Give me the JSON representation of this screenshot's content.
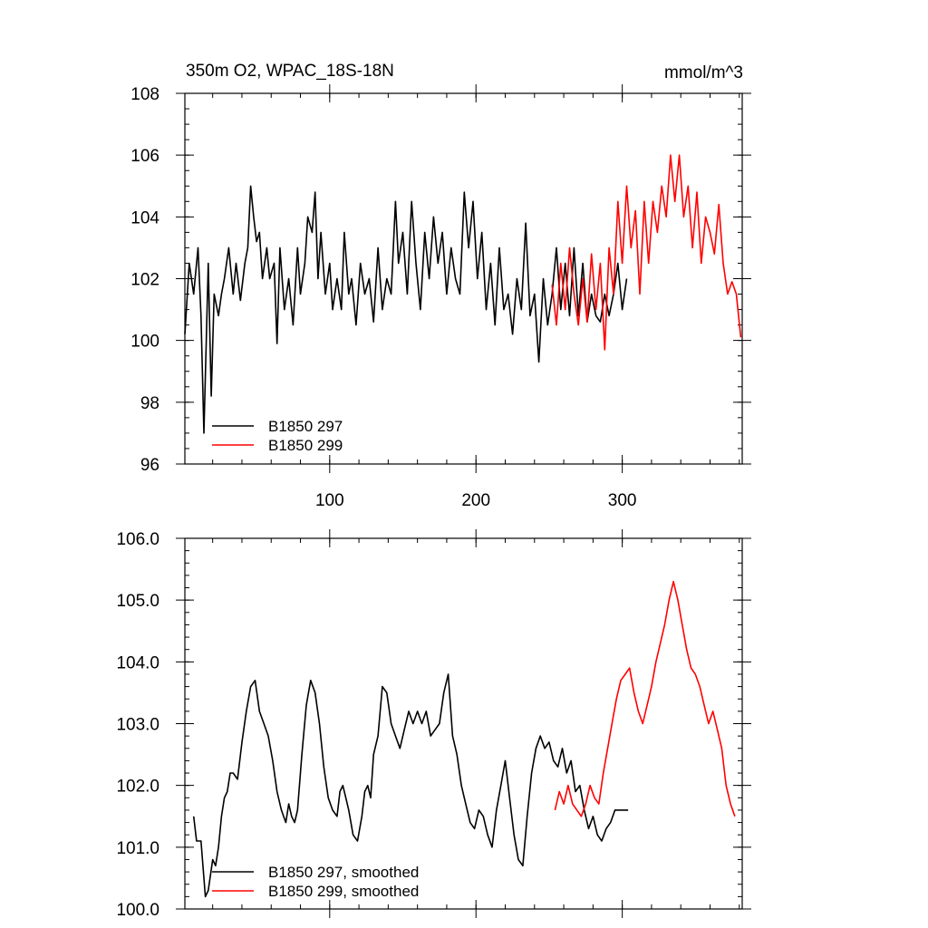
{
  "colors": {
    "series_297": "#000000",
    "series_299": "#ff0000"
  },
  "chart_data": [
    {
      "type": "line",
      "title": "350m O2, WPAC_18S-18N",
      "units": "mmol/m^3",
      "xlim": [
        1,
        382
      ],
      "ylim": [
        96,
        108
      ],
      "x_ticks": [
        100,
        200,
        300
      ],
      "y_ticks": [
        96,
        98,
        100,
        102,
        104,
        106,
        108
      ],
      "y_tick_labels": [
        "96",
        "98",
        "100",
        "102",
        "104",
        "106",
        "108"
      ],
      "x_tick_labels": [
        "100",
        "200",
        "300"
      ],
      "grid": false,
      "legend_position": "bottom-left",
      "series": [
        {
          "name": "B1850 297",
          "color": "#000000",
          "x": [
            1,
            4,
            7,
            10,
            12,
            14,
            17,
            19,
            21,
            24,
            26,
            28,
            31,
            34,
            36,
            39,
            42,
            44,
            46,
            48,
            50,
            52,
            54,
            57,
            59,
            62,
            64,
            66,
            69,
            72,
            75,
            78,
            80,
            83,
            85,
            88,
            90,
            92,
            94,
            97,
            100,
            102,
            105,
            108,
            110,
            113,
            115,
            118,
            121,
            124,
            127,
            130,
            133,
            136,
            139,
            142,
            145,
            147,
            150,
            153,
            156,
            159,
            162,
            165,
            168,
            171,
            174,
            177,
            180,
            183,
            186,
            189,
            192,
            195,
            198,
            201,
            204,
            207,
            210,
            213,
            216,
            219,
            222,
            225,
            228,
            231,
            234,
            237,
            240,
            243,
            246,
            249,
            252,
            255,
            258,
            261,
            264,
            267,
            270,
            273,
            276,
            279,
            282,
            285,
            288,
            291,
            294,
            297,
            300,
            303
          ],
          "values": [
            100.2,
            102.5,
            101.5,
            103.0,
            100.8,
            97.0,
            102.5,
            98.2,
            101.5,
            100.8,
            101.5,
            102.0,
            103.0,
            101.5,
            102.5,
            101.3,
            102.5,
            103.0,
            105.0,
            104.0,
            103.2,
            103.5,
            102.0,
            103.0,
            102.0,
            102.5,
            99.9,
            103.0,
            101.0,
            102.0,
            100.5,
            103.0,
            101.5,
            102.5,
            104.0,
            103.5,
            104.8,
            102.0,
            103.5,
            101.5,
            102.5,
            101.0,
            102.0,
            101.0,
            103.5,
            101.5,
            102.0,
            100.5,
            102.5,
            101.5,
            102.0,
            100.6,
            103.0,
            101.0,
            102.0,
            101.5,
            104.5,
            102.5,
            103.5,
            101.5,
            104.5,
            102.5,
            101.0,
            103.5,
            102.0,
            104.0,
            102.5,
            103.5,
            101.5,
            103.0,
            102.0,
            101.5,
            104.8,
            103.0,
            104.5,
            102.0,
            103.5,
            101.0,
            102.5,
            100.5,
            103.0,
            101.0,
            101.5,
            100.2,
            102.0,
            101.0,
            103.8,
            100.8,
            101.5,
            99.3,
            102.0,
            100.5,
            101.5,
            103.0,
            101.0,
            102.5,
            100.8,
            103.0,
            100.8,
            102.5,
            100.6,
            101.5,
            100.8,
            100.6,
            101.5,
            100.8,
            101.5,
            102.5,
            101.0,
            102.0
          ],
          "note_x_range": "approx 1-303"
        },
        {
          "name": "B1850 299",
          "color": "#ff0000",
          "x": [
            252,
            255,
            258,
            261,
            264,
            267,
            270,
            273,
            276,
            279,
            282,
            285,
            288,
            291,
            294,
            297,
            300,
            303,
            306,
            309,
            312,
            315,
            318,
            321,
            324,
            327,
            330,
            333,
            336,
            339,
            342,
            345,
            348,
            351,
            354,
            357,
            360,
            363,
            366,
            369,
            372,
            375,
            378,
            381
          ],
          "values": [
            101.8,
            100.5,
            102.5,
            101.0,
            103.0,
            101.5,
            100.5,
            102.0,
            100.6,
            102.8,
            101.0,
            102.5,
            99.7,
            103.0,
            101.5,
            104.5,
            102.5,
            105.0,
            103.0,
            104.2,
            101.5,
            104.5,
            102.5,
            104.5,
            103.5,
            105.0,
            104.0,
            106.0,
            104.5,
            106.0,
            104.0,
            105.0,
            103.0,
            104.8,
            102.5,
            104.0,
            103.5,
            102.8,
            104.4,
            102.5,
            101.5,
            101.9,
            101.5,
            100.1
          ],
          "note_x_range": "approx 251-382"
        }
      ]
    },
    {
      "type": "line",
      "title": "",
      "xlim": [
        1,
        382
      ],
      "ylim": [
        100,
        106
      ],
      "x_ticks": [
        100,
        200,
        300
      ],
      "y_ticks": [
        100,
        101,
        102,
        103,
        104,
        105,
        106
      ],
      "y_tick_labels": [
        "100.0",
        "101.0",
        "102.0",
        "103.0",
        "104.0",
        "105.0",
        "106.0"
      ],
      "grid": false,
      "legend_position": "bottom-left",
      "series": [
        {
          "name": "B1850 297, smoothed",
          "color": "#000000",
          "x": [
            7,
            9,
            12,
            15,
            17,
            20,
            22,
            24,
            26,
            28,
            30,
            32,
            34,
            37,
            40,
            43,
            46,
            49,
            52,
            55,
            58,
            61,
            64,
            67,
            70,
            72,
            74,
            76,
            78,
            81,
            84,
            87,
            90,
            93,
            96,
            99,
            102,
            105,
            107,
            109,
            111,
            113,
            116,
            119,
            122,
            124,
            126,
            128,
            130,
            133,
            136,
            139,
            142,
            145,
            148,
            151,
            154,
            157,
            160,
            163,
            166,
            169,
            172,
            175,
            178,
            181,
            184,
            187,
            190,
            193,
            196,
            199,
            202,
            205,
            208,
            211,
            214,
            217,
            220,
            223,
            226,
            229,
            232,
            235,
            238,
            241,
            244,
            247,
            250,
            253,
            256,
            259,
            262,
            265,
            268,
            271,
            274,
            277,
            280,
            283,
            286,
            289,
            292,
            295,
            298,
            301,
            304
          ],
          "values": [
            101.5,
            101.1,
            101.1,
            100.2,
            100.3,
            100.8,
            100.7,
            101.0,
            101.5,
            101.8,
            101.9,
            102.2,
            102.2,
            102.1,
            102.7,
            103.2,
            103.6,
            103.7,
            103.2,
            103.0,
            102.8,
            102.4,
            101.9,
            101.6,
            101.4,
            101.7,
            101.5,
            101.4,
            101.6,
            102.5,
            103.3,
            103.7,
            103.5,
            103.0,
            102.3,
            101.8,
            101.6,
            101.5,
            101.9,
            102.0,
            101.8,
            101.6,
            101.2,
            101.1,
            101.5,
            101.9,
            102.0,
            101.8,
            102.5,
            102.8,
            103.6,
            103.5,
            103.0,
            102.8,
            102.6,
            102.9,
            103.2,
            103.0,
            103.2,
            103.0,
            103.2,
            102.8,
            102.9,
            103.0,
            103.5,
            103.8,
            102.8,
            102.5,
            102.0,
            101.7,
            101.4,
            101.3,
            101.6,
            101.5,
            101.2,
            101.0,
            101.6,
            102.0,
            102.4,
            101.8,
            101.2,
            100.8,
            100.7,
            101.5,
            102.2,
            102.6,
            102.8,
            102.6,
            102.7,
            102.4,
            102.3,
            102.6,
            102.2,
            102.4,
            101.9,
            102.0,
            101.6,
            101.3,
            101.5,
            101.2,
            101.1,
            101.3,
            101.4,
            101.6,
            101.6,
            101.6,
            101.6
          ],
          "note_x_range": "approx 7-304"
        },
        {
          "name": "B1850 299, smoothed",
          "color": "#ff0000",
          "x": [
            254,
            257,
            260,
            263,
            266,
            269,
            272,
            275,
            278,
            281,
            284,
            287,
            290,
            293,
            296,
            299,
            302,
            305,
            308,
            311,
            314,
            317,
            320,
            323,
            326,
            329,
            332,
            335,
            338,
            341,
            344,
            347,
            350,
            353,
            356,
            359,
            362,
            365,
            368,
            371,
            374,
            377
          ],
          "values": [
            101.6,
            101.9,
            101.7,
            102.0,
            101.7,
            101.6,
            101.5,
            101.7,
            102.0,
            101.8,
            101.7,
            102.2,
            102.6,
            103.0,
            103.4,
            103.7,
            103.8,
            103.9,
            103.5,
            103.2,
            103.0,
            103.3,
            103.6,
            104.0,
            104.3,
            104.6,
            105.0,
            105.3,
            105.0,
            104.6,
            104.2,
            103.9,
            103.8,
            103.6,
            103.3,
            103.0,
            103.2,
            102.9,
            102.6,
            102.0,
            101.7,
            101.5
          ],
          "note_x_range": "approx 253-377"
        }
      ]
    }
  ],
  "legend": {
    "top": [
      "B1850 297",
      "B1850 299"
    ],
    "bottom": [
      "B1850 297, smoothed",
      "B1850 299, smoothed"
    ]
  }
}
